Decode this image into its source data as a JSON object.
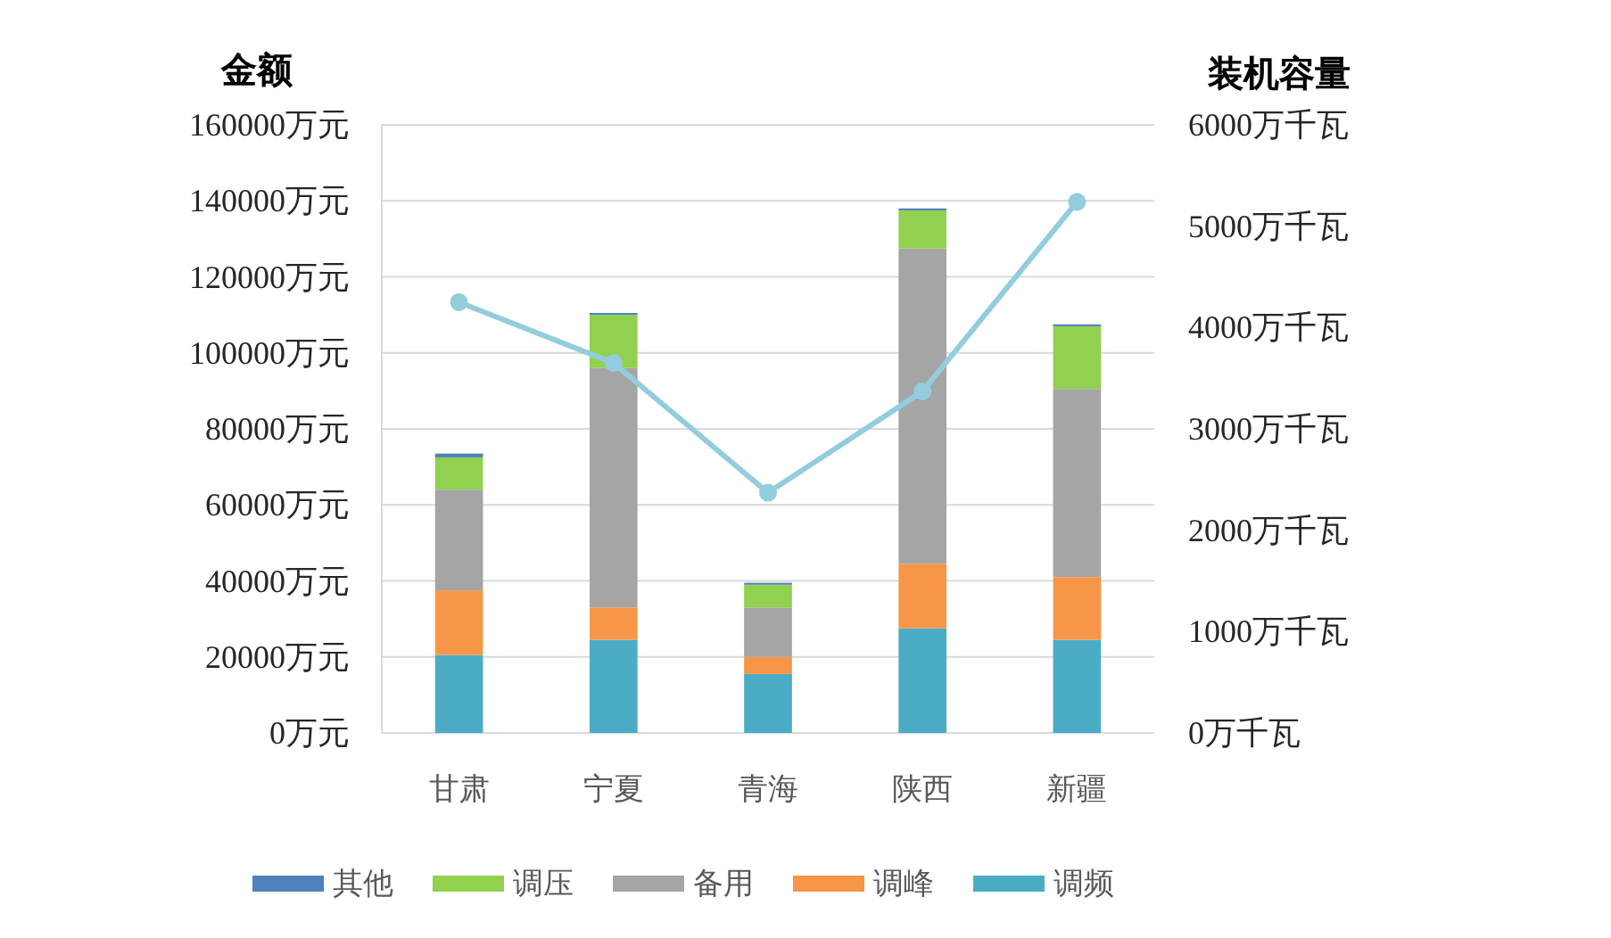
{
  "chart_data": {
    "type": "bar",
    "stacked": true,
    "ylabel": "金额",
    "y2label": "装机容量",
    "categories": [
      "甘肃",
      "宁夏",
      "青海",
      "陕西",
      "新疆"
    ],
    "series": [
      {
        "name": "调频",
        "color": "#4bacc6",
        "values": [
          20500,
          24500,
          15500,
          27500,
          24500
        ]
      },
      {
        "name": "调峰",
        "color": "#f79646",
        "values": [
          17000,
          8500,
          4500,
          17000,
          16500
        ]
      },
      {
        "name": "备用",
        "color": "#a5a5a5",
        "values": [
          26500,
          63000,
          13000,
          83000,
          49500
        ]
      },
      {
        "name": "调压",
        "color": "#92d050",
        "values": [
          8500,
          14000,
          6000,
          10000,
          16500
        ]
      },
      {
        "name": "其他",
        "color": "#4f81bd",
        "values": [
          1000,
          500,
          500,
          500,
          500
        ]
      },
      {
        "type": "line",
        "axis": "y2",
        "color": "#93cddd",
        "marker": "circle",
        "values": [
          4250,
          3650,
          2370,
          3370,
          5240
        ]
      }
    ],
    "ylim": [
      0,
      160000
    ],
    "yticks": [
      {
        "value": 0,
        "label": "0万元"
      },
      {
        "value": 20000,
        "label": "20000万元"
      },
      {
        "value": 40000,
        "label": "40000万元"
      },
      {
        "value": 60000,
        "label": "60000万元"
      },
      {
        "value": 80000,
        "label": "80000万元"
      },
      {
        "value": 100000,
        "label": "100000万元"
      },
      {
        "value": 120000,
        "label": "120000万元"
      },
      {
        "value": 140000,
        "label": "140000万元"
      },
      {
        "value": 160000,
        "label": "160000万元"
      }
    ],
    "y2lim": [
      0,
      6000
    ],
    "y2ticks": [
      {
        "value": 0,
        "label": "0万千瓦"
      },
      {
        "value": 1000,
        "label": "1000万千瓦"
      },
      {
        "value": 2000,
        "label": "2000万千瓦"
      },
      {
        "value": 3000,
        "label": "3000万千瓦"
      },
      {
        "value": 4000,
        "label": "4000万千瓦"
      },
      {
        "value": 5000,
        "label": "5000万千瓦"
      },
      {
        "value": 6000,
        "label": "6000万千瓦"
      }
    ],
    "grid": "y",
    "legend": "bottom"
  }
}
